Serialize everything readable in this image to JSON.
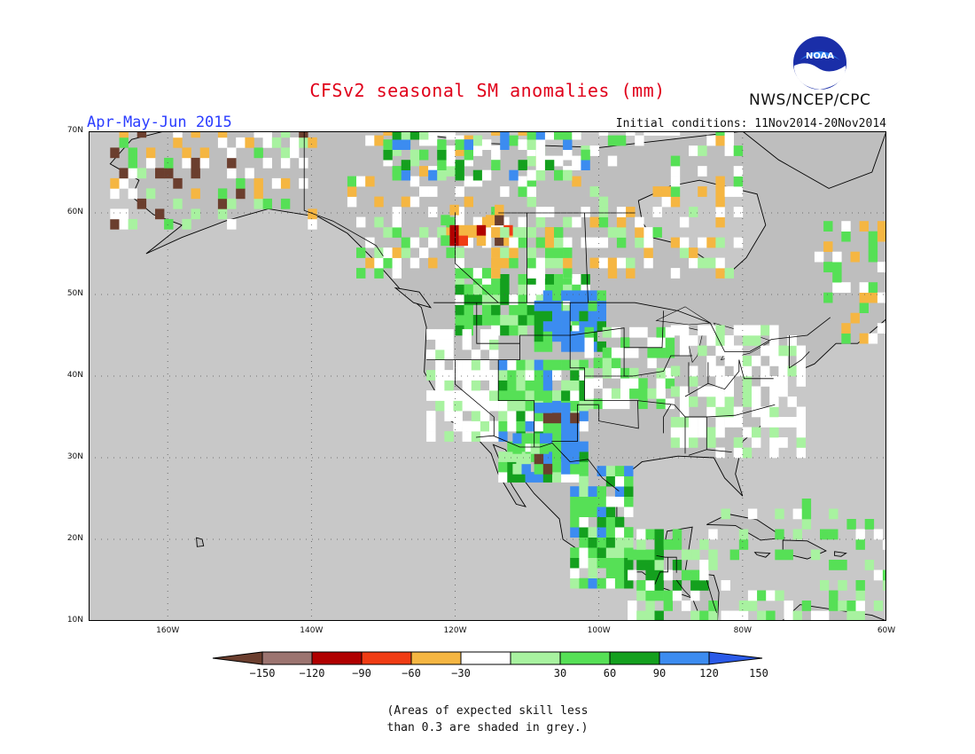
{
  "title": "CFSv2 seasonal SM anomalies (mm)",
  "period": "Apr-May-Jun 2015",
  "initial_conditions": "Initial conditions: 11Nov2014-20Nov2014",
  "agency": "NWS/NCEP/CPC",
  "logo_text": "NOAA",
  "lat_labels": [
    "70N",
    "60N",
    "50N",
    "40N",
    "30N",
    "20N",
    "10N"
  ],
  "lon_labels": [
    "160W",
    "140W",
    "120W",
    "100W",
    "80W",
    "60W"
  ],
  "colorbar": {
    "labels": [
      "-150",
      "-120",
      "-90",
      "-60",
      "-30",
      "30",
      "60",
      "90",
      "120",
      "150"
    ],
    "colors": [
      "#6b3e2e",
      "#9c7470",
      "#b00000",
      "#f03c14",
      "#f5b642",
      "#ffffff",
      "#a8f2a0",
      "#56e056",
      "#14a01e",
      "#3c8cf0",
      "#2a5ae8"
    ]
  },
  "note_lines": [
    "(Areas of expected skill less",
    "than 0.3 are shaded in grey.)"
  ],
  "map_colors": {
    "ocean": "#c8c8c8",
    "grey_land": "#bebebe",
    "coast": "#000000"
  }
}
